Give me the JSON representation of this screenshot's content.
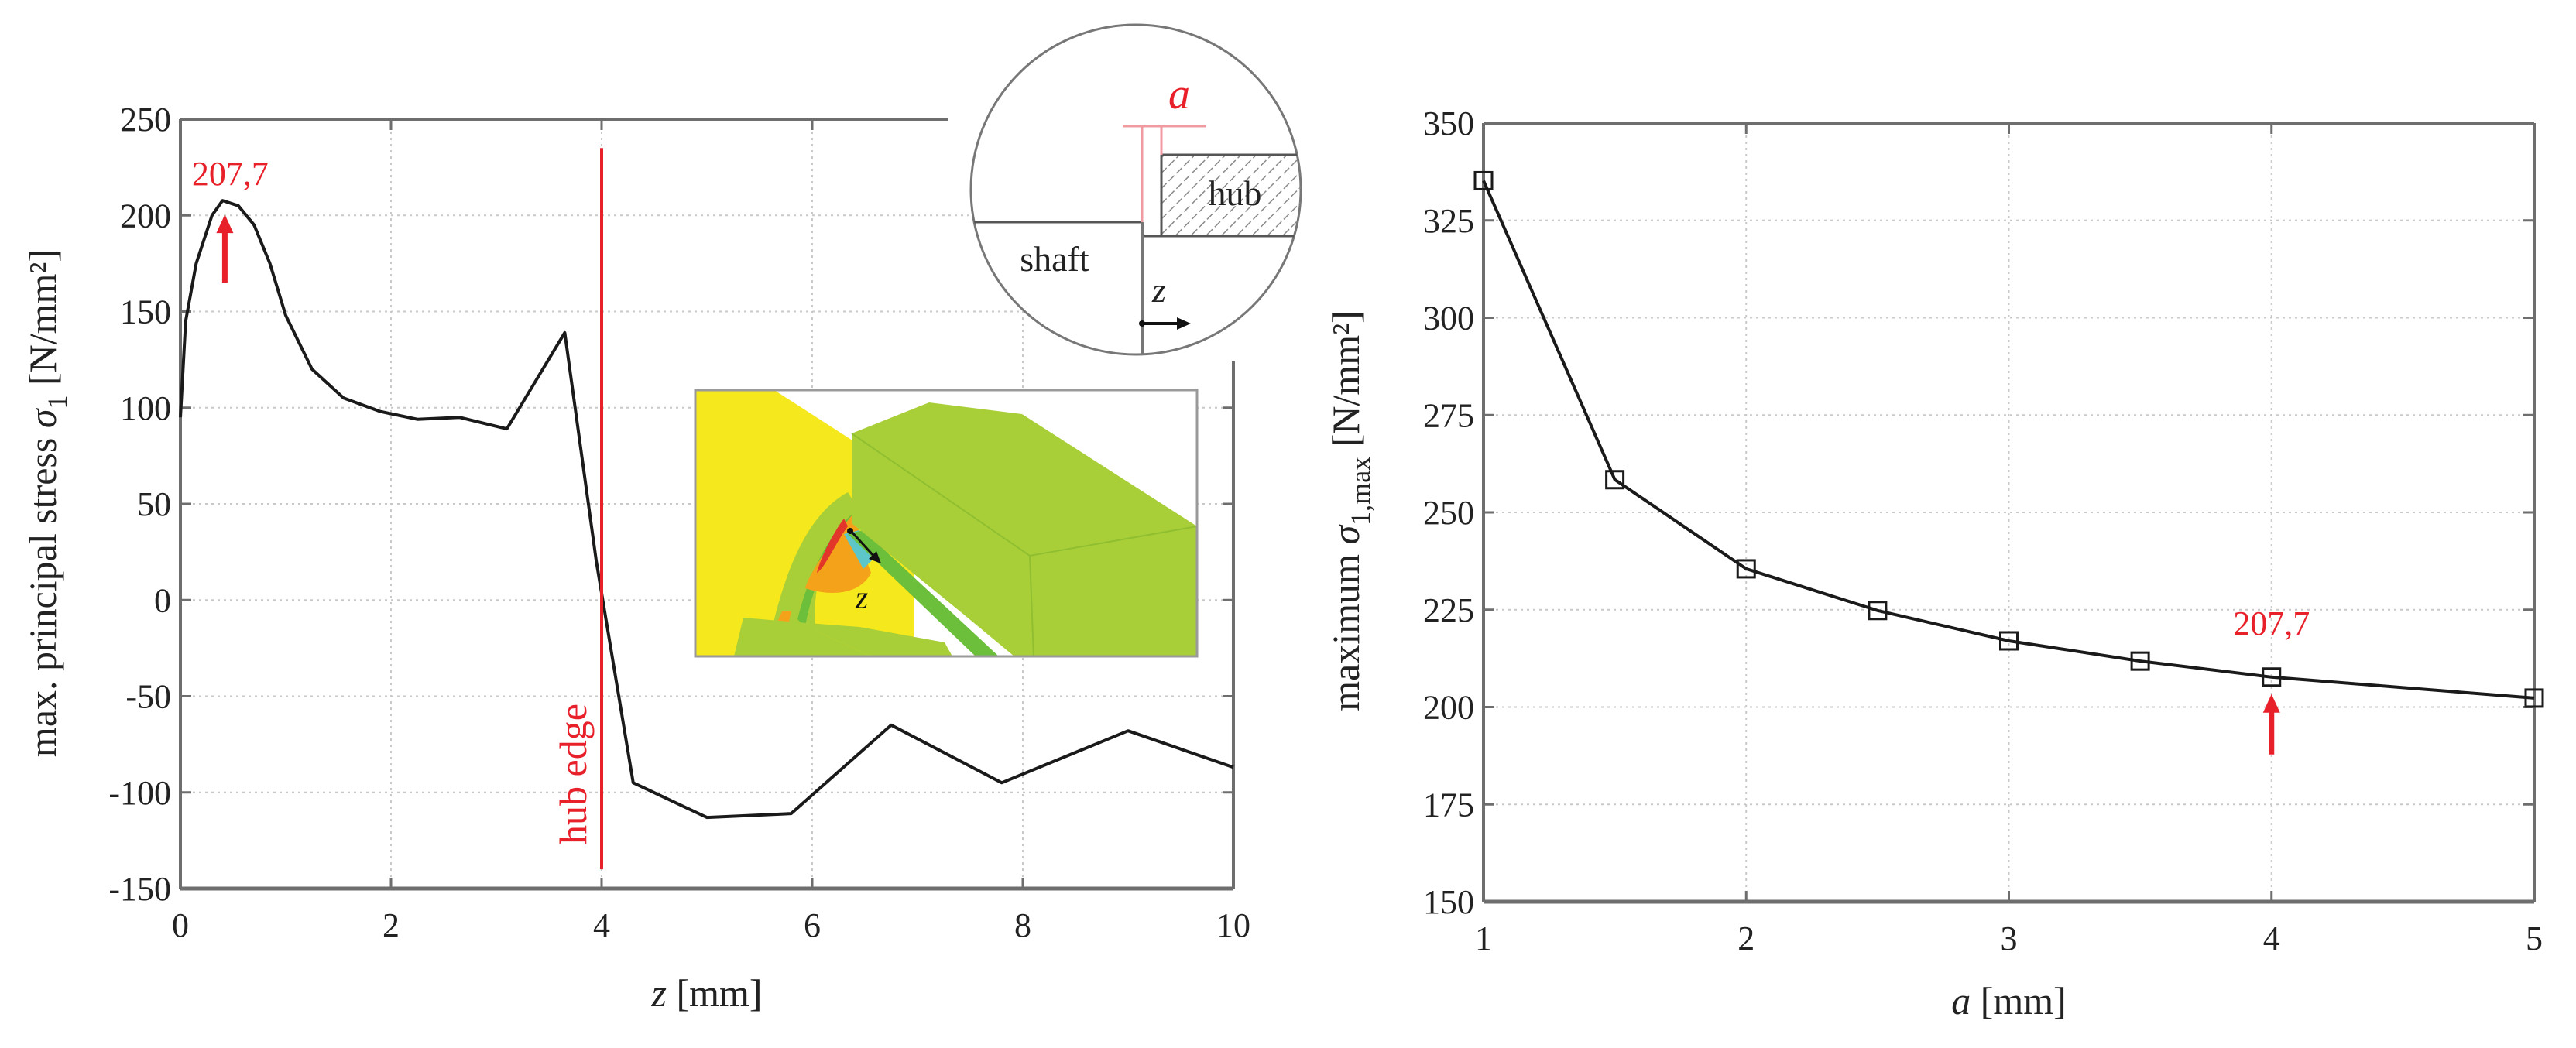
{
  "figure": {
    "left_panel": {
      "ylabel_prefix": "max. principal stress ",
      "ylabel_symbol": "σ",
      "ylabel_sub": "1",
      "ylabel_unit": " [N/mm²]",
      "xlabel_var": "z",
      "xlabel_unit": " [mm]",
      "annotation_value": "207,7",
      "hub_edge_label": "hub edge",
      "inset_diagram": {
        "a_label": "a",
        "hub_label": "hub",
        "shaft_label": "shaft",
        "z_label": "z"
      },
      "fem_inset": {
        "z_label": "z"
      }
    },
    "right_panel": {
      "ylabel_prefix": "maximum ",
      "ylabel_symbol": "σ",
      "ylabel_sub": "1,max",
      "ylabel_unit": " [N/mm²]",
      "xlabel_var": "a",
      "xlabel_unit": " [mm]",
      "annotation_value": "207,7"
    },
    "colors": {
      "curve": "#1a1a1a",
      "annotation": "#e8202a",
      "axis": "#6e6e6e",
      "grid": "#c8c8c8",
      "fem_yellow": "#f5e81c",
      "fem_green": "#a9cf38",
      "fem_darkgreen": "#6cbf3a",
      "fem_orange": "#f4a21a",
      "fem_red": "#e2362a",
      "fem_cyan": "#5cc6c8"
    }
  },
  "chart_data": [
    {
      "type": "line",
      "title": "",
      "xlabel": "z [mm]",
      "ylabel": "max. principal stress σ1 [N/mm²]",
      "xlim": [
        0,
        10
      ],
      "ylim": [
        -150,
        250
      ],
      "xticks": [
        0,
        2,
        4,
        6,
        8,
        10
      ],
      "yticks": [
        -150,
        -100,
        -50,
        0,
        50,
        100,
        150,
        200,
        250
      ],
      "grid": true,
      "series": [
        {
          "name": "max. principal stress",
          "x": [
            0,
            0.05,
            0.15,
            0.3,
            0.4,
            0.55,
            0.7,
            0.85,
            1.0,
            1.25,
            1.55,
            1.9,
            2.25,
            2.65,
            3.1,
            3.65,
            3.95,
            4.3,
            5.0,
            5.8,
            6.75,
            7.8,
            9.0,
            10.0
          ],
          "y": [
            95,
            145,
            175,
            200,
            207.7,
            205,
            195,
            175,
            148,
            120,
            105,
            98,
            94,
            95,
            89,
            139,
            20,
            -95,
            -113,
            -111,
            -65,
            -95,
            -68,
            -87
          ]
        }
      ],
      "annotations": [
        {
          "text": "207,7",
          "x": 0.4,
          "y": 207.7,
          "type": "arrow-up",
          "color": "#e8202a"
        },
        {
          "text": "hub edge",
          "x": 4,
          "type": "vertical-line",
          "y_from": -140,
          "y_to": 235,
          "color": "#e8202a"
        }
      ]
    },
    {
      "type": "line",
      "title": "",
      "xlabel": "a [mm]",
      "ylabel": "maximum σ1,max [N/mm²]",
      "xlim": [
        1,
        5
      ],
      "ylim": [
        150,
        350
      ],
      "xticks": [
        1,
        2,
        3,
        4,
        5
      ],
      "yticks": [
        150,
        175,
        200,
        225,
        250,
        275,
        300,
        325,
        350
      ],
      "grid": true,
      "marker": "square",
      "series": [
        {
          "name": "maximum σ1,max",
          "x": [
            1,
            1.5,
            2,
            2.5,
            3,
            3.5,
            4,
            5
          ],
          "y": [
            335.2,
            258.4,
            235.5,
            224.8,
            217.0,
            211.8,
            207.7,
            202.3
          ]
        }
      ],
      "annotations": [
        {
          "text": "207,7",
          "x": 4,
          "y": 207.7,
          "type": "arrow-up",
          "color": "#e8202a"
        }
      ]
    }
  ]
}
